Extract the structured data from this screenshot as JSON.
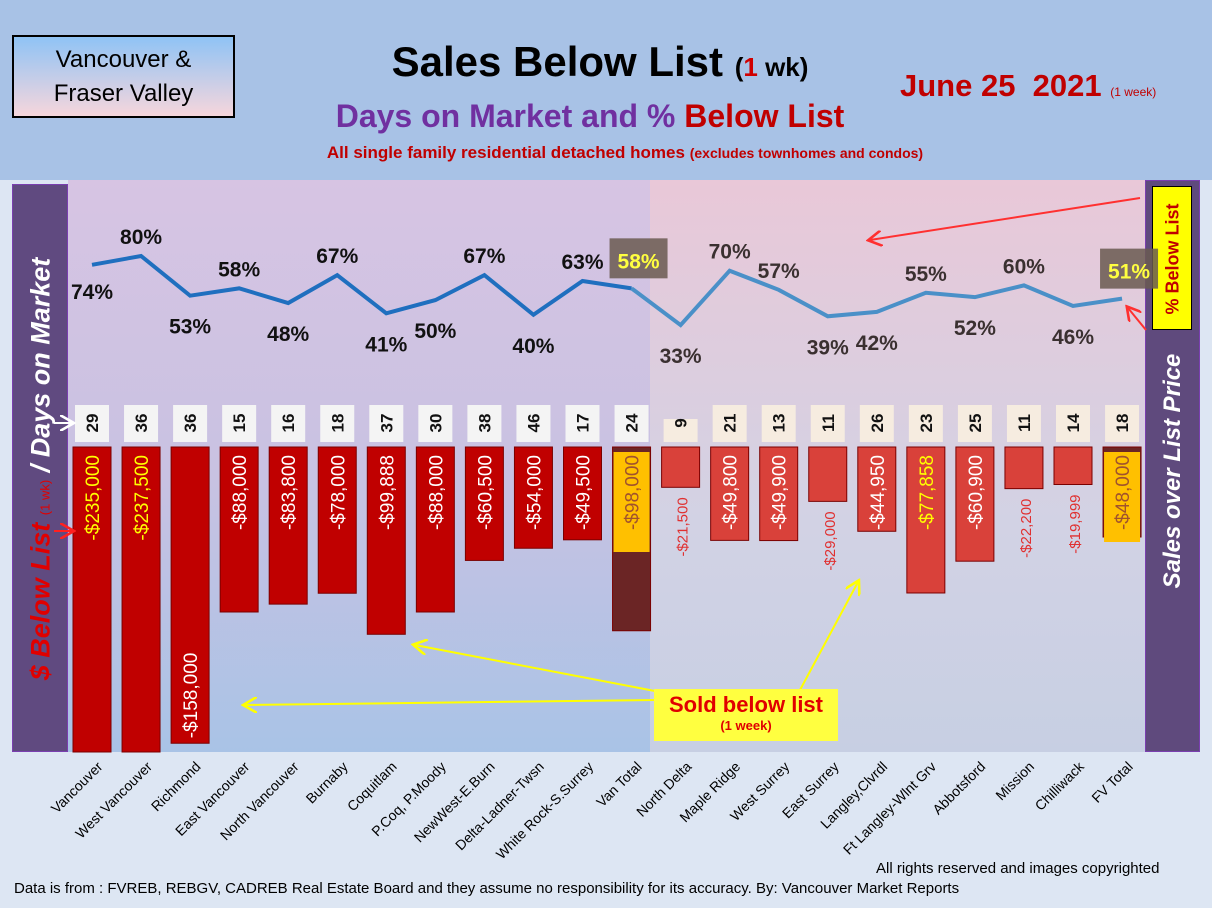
{
  "header": {
    "region_line1": "Vancouver &",
    "region_line2": "Fraser Valley",
    "title_main": "Sales Below List",
    "title_open": "(",
    "title_num": "1",
    "title_wk": "wk)",
    "subtitle_a": "Days on Market and %",
    "subtitle_b": "Below List",
    "note_main": "All single family residential detached homes",
    "note_small": "(excludes townhomes and condos)",
    "date": "June 25  2021",
    "date_small": "(1 week)"
  },
  "axes": {
    "left_a": "$ Below List",
    "left_sm": "(1 wk)",
    "left_b": "/ Days on Market",
    "right": "Sales over List Price",
    "pct_box": "% Below List"
  },
  "annotation": {
    "sold": "Sold below list",
    "sold_sm": "(1 week)"
  },
  "footer": {
    "rights": "All rights reserved and  images copyrighted",
    "source": "Data is from : FVREB, REBGV, CADREB Real Estate Board and they assume no responsibility for its accuracy. By: Vancouver Market Reports"
  },
  "colors": {
    "van_bar": "#c00000",
    "fv_bar": "#d9413a",
    "total_box": "#ffc000",
    "van_line": "#1f6fbf",
    "fv_line": "#4a90c8"
  },
  "chart_data": {
    "type": "bar+line",
    "title": "Sales Below List (1 wk)",
    "categories": [
      "Vancouver",
      "West Vancouver",
      "Richmond",
      "East Vancouver",
      "North Vancouver",
      "Burnaby",
      "Coquitlam",
      "P.Coq, P.Moody",
      "NewWest-E.Burn",
      "Delta-Ladner-Twsn",
      "White Rock-S.Surrey",
      "Van Total",
      "North Delta",
      "Maple Ridge",
      "West Surrey",
      "East Surrey",
      "Langley,Clvrdl",
      "Ft Langley-Wlnt Grv",
      "Abbotsford",
      "Mission",
      "Chilliwack",
      "FV Total"
    ],
    "series": [
      {
        "name": "% Below List",
        "values": [
          74,
          80,
          53,
          58,
          48,
          67,
          41,
          50,
          67,
          40,
          63,
          58,
          33,
          70,
          57,
          39,
          42,
          55,
          52,
          60,
          46,
          51
        ]
      },
      {
        "name": "Days on Market",
        "values": [
          29,
          36,
          36,
          15,
          16,
          18,
          37,
          30,
          38,
          46,
          17,
          24,
          9,
          21,
          13,
          11,
          26,
          23,
          25,
          11,
          14,
          18
        ]
      },
      {
        "name": "$ Below List",
        "values": [
          -235000,
          -237500,
          -158000,
          -88000,
          -83800,
          -78000,
          -99888,
          -88000,
          -60500,
          -54000,
          -49500,
          -98000,
          -21500,
          -49800,
          -49900,
          -29000,
          -44950,
          -77858,
          -60900,
          -22200,
          -19999,
          -48000
        ],
        "labels": [
          "-$235,000",
          "-$237,500",
          "-$158,000",
          "-$88,000",
          "-$83,800",
          "-$78,000",
          "-$99,888",
          "-$88,000",
          "-$60,500",
          "-$54,000",
          "-$49,500",
          "-$98,000",
          "-$21,500",
          "-$49,800",
          "-$49,900",
          "-$29,000",
          "-$44,950",
          "-$77,858",
          "-$60,900",
          "-$22,200",
          "-$19,999",
          "-$48,000"
        ]
      }
    ],
    "pct_labels": [
      "74%",
      "80%",
      "53%",
      "58%",
      "48%",
      "67%",
      "41%",
      "50%",
      "67%",
      "40%",
      "63%",
      "58%",
      "33%",
      "70%",
      "57%",
      "39%",
      "42%",
      "55%",
      "52%",
      "60%",
      "46%",
      "51%"
    ],
    "groups": {
      "vancouver_count": 12,
      "fraser_valley_count": 10
    }
  }
}
